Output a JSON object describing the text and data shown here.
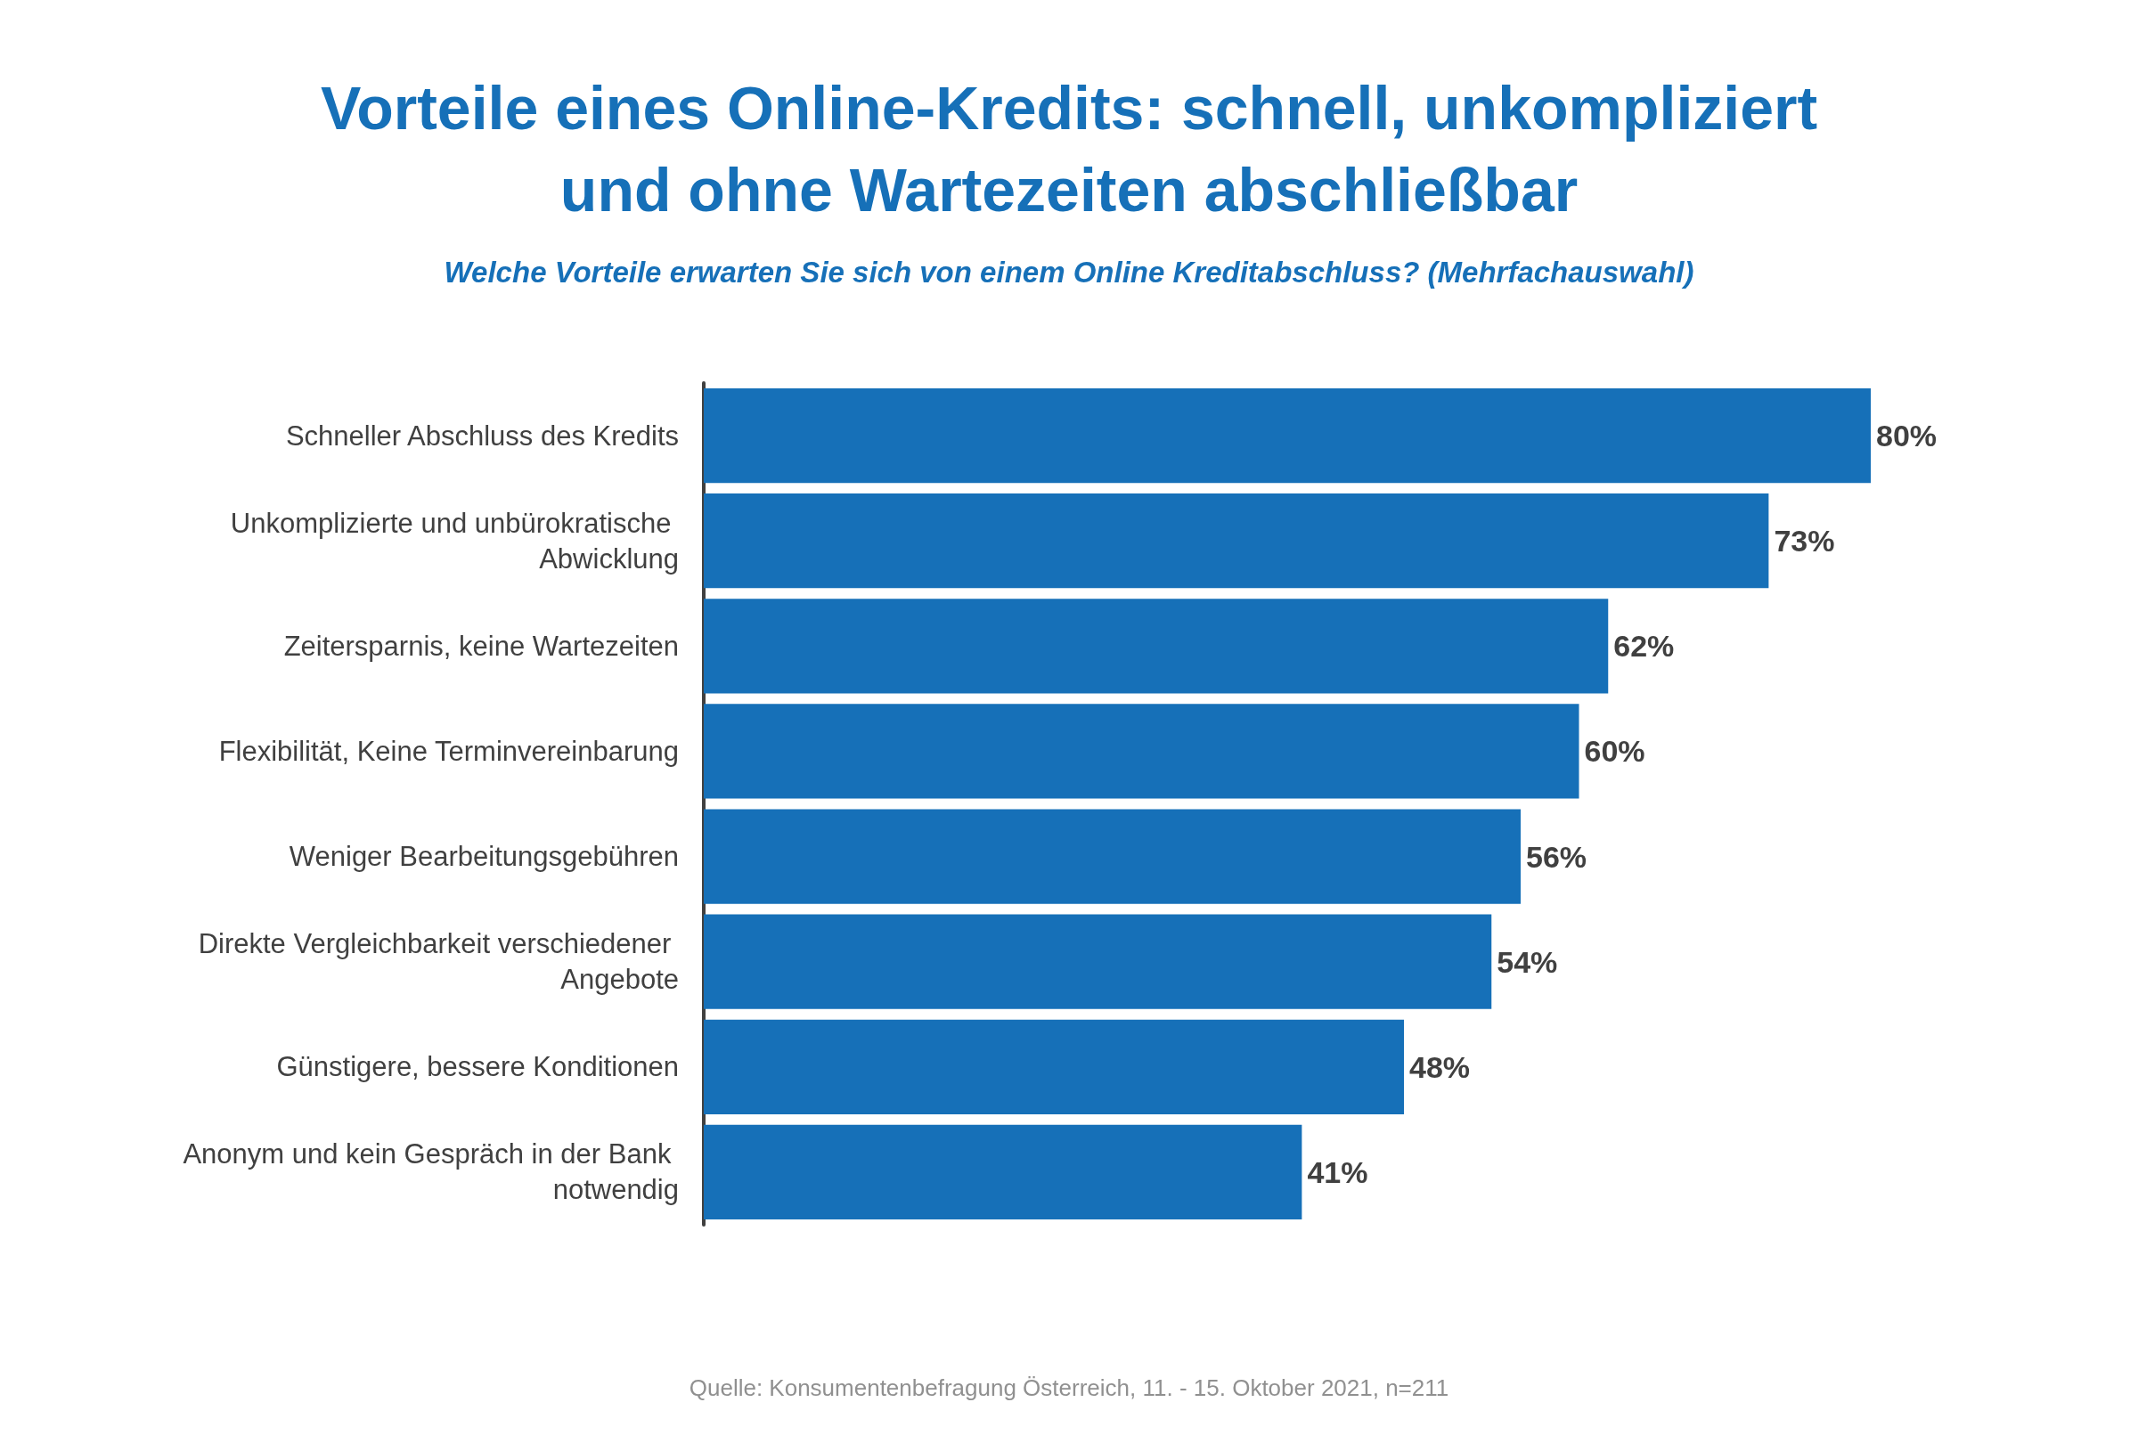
{
  "chart_data": {
    "type": "bar",
    "orientation": "horizontal",
    "title": "Vorteile eines Online-Kredits: schnell, unkompliziert\nund ohne Wartezeiten abschließbar",
    "subtitle": "Welche Vorteile erwarten Sie sich von einem Online Kreditabschluss? (Mehrfachauswahl)",
    "categories": [
      "Schneller Abschluss des Kredits",
      "Unkomplizierte und unbürokratische Abwicklung",
      "Zeitersparnis, keine Wartezeiten",
      "Flexibilität, Keine Terminvereinbarung",
      "Weniger Bearbeitungsgebühren",
      "Direkte Vergleichbarkeit verschiedener Angebote",
      "Günstigere, bessere Konditionen",
      "Anonym und kein Gespräch in der Bank notwendig"
    ],
    "values": [
      80,
      73,
      62,
      60,
      56,
      54,
      48,
      41
    ],
    "value_labels": [
      "80%",
      "73%",
      "62%",
      "60%",
      "56%",
      "54%",
      "48%",
      "41%"
    ],
    "color": "#1670b8",
    "annotations": [
      "Quelle: Konsumentenbefragung Österreich, 11. - 15. Oktober 2021, n=211"
    ]
  }
}
